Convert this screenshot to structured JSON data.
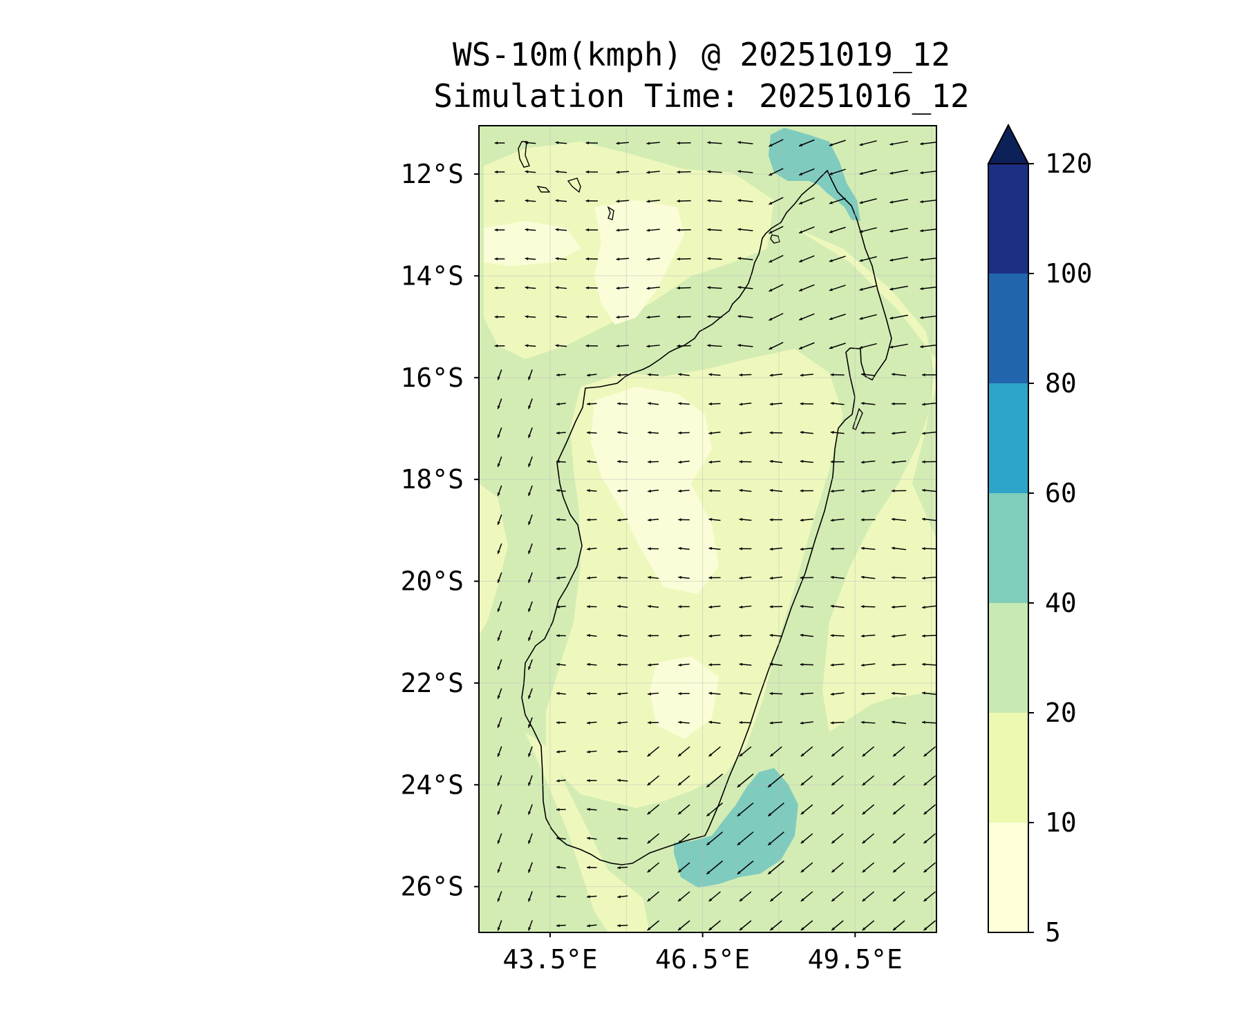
{
  "title": {
    "line1": "WS-10m(kmph) @ 20251019_12",
    "line2": "Simulation Time: 20251016_12"
  },
  "map": {
    "region": "Madagascar",
    "lat_ticks": [
      {
        "value": -12,
        "label": "12°S"
      },
      {
        "value": -14,
        "label": "14°S"
      },
      {
        "value": -16,
        "label": "16°S"
      },
      {
        "value": -18,
        "label": "18°S"
      },
      {
        "value": -20,
        "label": "20°S"
      },
      {
        "value": -22,
        "label": "22°S"
      },
      {
        "value": -24,
        "label": "24°S"
      },
      {
        "value": -26,
        "label": "26°S"
      }
    ],
    "lon_ticks": [
      {
        "value": 43.5,
        "label": "43.5°E"
      },
      {
        "value": 46.5,
        "label": "46.5°E"
      },
      {
        "value": 49.5,
        "label": "49.5°E"
      }
    ],
    "extent": {
      "lon_min": 42.1,
      "lon_max": 51.1,
      "lat_min": -26.9,
      "lat_max": -11.05
    }
  },
  "colorbar": {
    "extend": "max",
    "levels": [
      {
        "label": "5",
        "color": "#ffffd9"
      },
      {
        "label": "10",
        "color": "#edf8b1"
      },
      {
        "label": "20",
        "color": "#c7e9b4"
      },
      {
        "label": "40",
        "color": "#7fcdbb"
      },
      {
        "label": "60",
        "color": "#2ca5c9"
      },
      {
        "label": "80",
        "color": "#2166ac"
      },
      {
        "label": "100",
        "color": "#1d2f84"
      },
      {
        "label": "120",
        "color": "#0c2158"
      }
    ]
  },
  "colors": {
    "c5": "#fbfdd8",
    "c10": "#eef8bd",
    "c20": "#d3ecb4",
    "c40": "#7fcbbe"
  }
}
